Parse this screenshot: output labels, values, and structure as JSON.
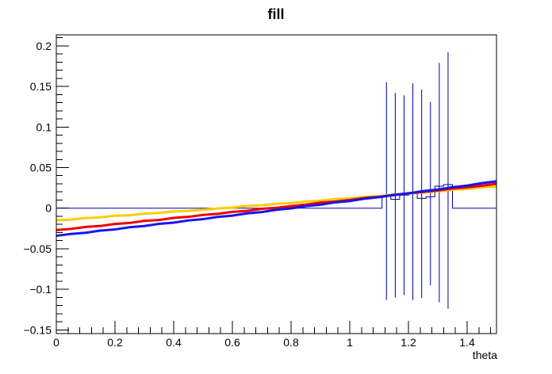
{
  "chart_data": {
    "type": "line",
    "title": "fill",
    "xlabel": "theta",
    "ylabel": "",
    "xlim": [
      0,
      1.5
    ],
    "ylim": [
      -0.1545,
      0.2135
    ],
    "grid": false,
    "legend": "none",
    "background_color": "#ffffff",
    "frame_color": "#000000",
    "x_ticks": {
      "major_values": [
        0,
        0.2,
        0.4,
        0.6,
        0.8,
        1,
        1.2,
        1.4
      ],
      "major_labels": [
        "0",
        "0.2",
        "0.4",
        "0.6",
        "0.8",
        "1",
        "1.2",
        "1.4"
      ],
      "minor_step": 0.04
    },
    "y_ticks": {
      "major_values": [
        0.2,
        0.15,
        0.1,
        0.05,
        0,
        -0.05,
        -0.1,
        -0.15
      ],
      "major_labels": [
        "0.2",
        "0.15",
        "0.1",
        "0.05",
        "0",
        "−0.05",
        "−0.1",
        "−0.15"
      ],
      "minor_step": 0.01
    },
    "series": [
      {
        "name": "yellow-curve",
        "color": "#ffcc00",
        "line_width": 3,
        "x": [
          0,
          0.05,
          0.1,
          0.15,
          0.2,
          0.25,
          0.3,
          0.35,
          0.4,
          0.45,
          0.5,
          0.55,
          0.6,
          0.65,
          0.7,
          0.75,
          0.8,
          0.85,
          0.9,
          0.95,
          1,
          1.05,
          1.1,
          1.15,
          1.2,
          1.25,
          1.3,
          1.35,
          1.4,
          1.45,
          1.5
        ],
        "y": [
          -0.015,
          -0.0141,
          -0.0121,
          -0.0113,
          -0.0093,
          -0.0087,
          -0.0068,
          -0.0059,
          -0.004,
          -0.0033,
          -0.002,
          -0.0004,
          0.0008,
          0.0028,
          0.0035,
          0.0055,
          0.0063,
          0.0083,
          0.0092,
          0.0112,
          0.012,
          0.014,
          0.0149,
          0.0169,
          0.0178,
          0.0198,
          0.0207,
          0.0228,
          0.0237,
          0.0257,
          0.0266
        ]
      },
      {
        "name": "red-curve",
        "color": "#ee0000",
        "line_width": 3,
        "x": [
          0,
          0.05,
          0.1,
          0.15,
          0.2,
          0.25,
          0.3,
          0.35,
          0.4,
          0.45,
          0.5,
          0.55,
          0.6,
          0.65,
          0.7,
          0.75,
          0.8,
          0.85,
          0.9,
          0.95,
          1,
          1.05,
          1.1,
          1.15,
          1.2,
          1.25,
          1.3,
          1.35,
          1.4,
          1.45,
          1.5
        ],
        "y": [
          -0.027,
          -0.0255,
          -0.0231,
          -0.0219,
          -0.0194,
          -0.0182,
          -0.0157,
          -0.0145,
          -0.012,
          -0.0107,
          -0.0083,
          -0.007,
          -0.0045,
          -0.0033,
          -0.0008,
          0.0005,
          0.0025,
          0.0044,
          0.0069,
          0.0082,
          0.0101,
          0.0126,
          0.014,
          0.0159,
          0.0185,
          0.0198,
          0.0218,
          0.0243,
          0.0257,
          0.0277,
          0.03
        ]
      },
      {
        "name": "blue-curve",
        "color": "#1515f0",
        "line_width": 3,
        "x": [
          0,
          0.05,
          0.1,
          0.15,
          0.2,
          0.25,
          0.3,
          0.35,
          0.4,
          0.45,
          0.5,
          0.55,
          0.6,
          0.65,
          0.7,
          0.75,
          0.8,
          0.85,
          0.9,
          0.95,
          1,
          1.05,
          1.1,
          1.15,
          1.2,
          1.25,
          1.3,
          1.35,
          1.4,
          1.45,
          1.5
        ],
        "y": [
          -0.034,
          -0.0317,
          -0.0303,
          -0.0276,
          -0.0262,
          -0.0235,
          -0.022,
          -0.0193,
          -0.0178,
          -0.0151,
          -0.0135,
          -0.0108,
          -0.0092,
          -0.0064,
          -0.0048,
          -0.002,
          -0.0003,
          0.0025,
          0.0042,
          0.0071,
          0.0088,
          0.0117,
          0.0135,
          0.0164,
          0.0182,
          0.0211,
          0.0229,
          0.0259,
          0.0278,
          0.0308,
          0.033
        ]
      }
    ],
    "histogram": {
      "name": "fill-histogram",
      "color": "#000099",
      "line_width": 1,
      "baseline_value": 0,
      "x_start": 0,
      "x_end": 1.5,
      "first_bin_low_edge": 1.11,
      "bin_width": 0.03,
      "bin_values": [
        0.015,
        0.011,
        0.016,
        0.018,
        0.012,
        0.014,
        0.027,
        0.029
      ],
      "error_bars": {
        "centers": [
          1.125,
          1.155,
          1.185,
          1.215,
          1.245,
          1.275,
          1.305,
          1.335
        ],
        "high": [
          0.155,
          0.142,
          0.139,
          0.154,
          0.146,
          0.131,
          0.179,
          0.192
        ],
        "low": [
          -0.113,
          -0.11,
          -0.107,
          -0.113,
          -0.111,
          -0.095,
          -0.116,
          -0.124
        ]
      }
    }
  }
}
